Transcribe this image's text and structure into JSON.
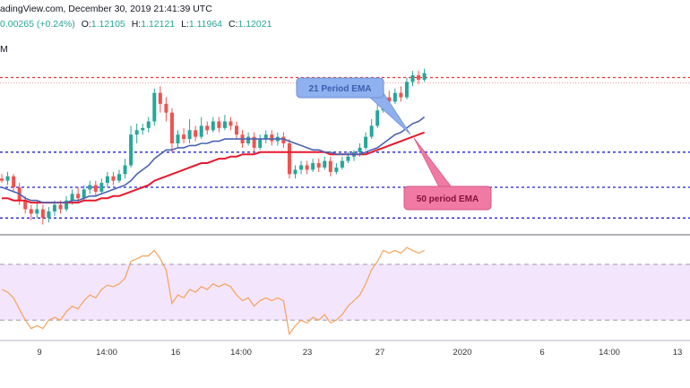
{
  "header": {
    "source_text": "adingView.com, December 30, 2019 21:41:39 UTC",
    "change_text": "0.00265 (+0.24%)",
    "ohlc": [
      {
        "label": "O:",
        "value": "1.12105"
      },
      {
        "label": "H:",
        "value": "1.12121"
      },
      {
        "label": "L:",
        "value": "1.11964"
      },
      {
        "label": "C:",
        "value": "1.12021"
      }
    ],
    "interval_label": "M"
  },
  "callouts": {
    "ema21_label": "21 Period EMA",
    "ema50_label": "50 period EMA"
  },
  "colors": {
    "bull": "#26a69a",
    "bear": "#ef5350",
    "ema21": "#4a64b4",
    "ema50": "#e8192c",
    "resistance": "#e53935",
    "support": "#1e22d8",
    "rsi_line": "#f5a25c",
    "rsi_band_fill": "#f3e5fb",
    "callout_blue_fill": "#8fb1ef",
    "callout_pink_fill": "#f07aa3"
  },
  "x_axis": {
    "tick_labels": [
      "9",
      "14:00",
      "16",
      "14:00",
      "23",
      "27",
      "2020",
      "6",
      "14:00",
      "13"
    ]
  },
  "chart_data": {
    "type": "candlestick",
    "x_unit": "candle index",
    "candles": [
      [
        1.1094,
        1.1093,
        1.1092,
        1.1096
      ],
      [
        1.1093,
        1.1095,
        1.1091,
        1.1097
      ],
      [
        1.1095,
        1.109,
        1.1088,
        1.1096
      ],
      [
        1.109,
        1.1084,
        1.1082,
        1.1092
      ],
      [
        1.1084,
        1.108,
        1.1078,
        1.1086
      ],
      [
        1.108,
        1.1078,
        1.1075,
        1.1082
      ],
      [
        1.1078,
        1.108,
        1.1076,
        1.1083
      ],
      [
        1.108,
        1.1076,
        1.1073,
        1.1082
      ],
      [
        1.1076,
        1.1079,
        1.1074,
        1.1081
      ],
      [
        1.1079,
        1.1082,
        1.1077,
        1.1084
      ],
      [
        1.1082,
        1.108,
        1.1078,
        1.1084
      ],
      [
        1.108,
        1.1084,
        1.1079,
        1.1086
      ],
      [
        1.1084,
        1.1087,
        1.1082,
        1.1089
      ],
      [
        1.1087,
        1.1085,
        1.1083,
        1.109
      ],
      [
        1.1085,
        1.1089,
        1.1084,
        1.1091
      ],
      [
        1.1089,
        1.1091,
        1.1087,
        1.1093
      ],
      [
        1.1091,
        1.1088,
        1.1086,
        1.1093
      ],
      [
        1.1088,
        1.1092,
        1.1087,
        1.1094
      ],
      [
        1.1092,
        1.1095,
        1.109,
        1.1097
      ],
      [
        1.1095,
        1.1093,
        1.1091,
        1.1097
      ],
      [
        1.1093,
        1.1096,
        1.1092,
        1.1098
      ],
      [
        1.1096,
        1.11,
        1.1094,
        1.1103
      ],
      [
        1.11,
        1.1114,
        1.1099,
        1.1118
      ],
      [
        1.1114,
        1.1116,
        1.111,
        1.1119
      ],
      [
        1.1116,
        1.1117,
        1.1114,
        1.1119
      ],
      [
        1.1117,
        1.112,
        1.1115,
        1.1122
      ],
      [
        1.112,
        1.1133,
        1.1118,
        1.1135
      ],
      [
        1.1133,
        1.1128,
        1.1124,
        1.1136
      ],
      [
        1.1128,
        1.1124,
        1.112,
        1.1131
      ],
      [
        1.1124,
        1.111,
        1.1106,
        1.1126
      ],
      [
        1.111,
        1.1114,
        1.1108,
        1.1116
      ],
      [
        1.1114,
        1.1112,
        1.111,
        1.1117
      ],
      [
        1.1112,
        1.1116,
        1.111,
        1.1121
      ],
      [
        1.1116,
        1.1113,
        1.1111,
        1.1118
      ],
      [
        1.1113,
        1.1118,
        1.1112,
        1.1122
      ],
      [
        1.1118,
        1.1116,
        1.1114,
        1.112
      ],
      [
        1.1116,
        1.112,
        1.1115,
        1.1122
      ],
      [
        1.112,
        1.1117,
        1.1115,
        1.1122
      ],
      [
        1.1117,
        1.112,
        1.1116,
        1.1123
      ],
      [
        1.112,
        1.1118,
        1.1116,
        1.1122
      ],
      [
        1.1118,
        1.1114,
        1.1112,
        1.112
      ],
      [
        1.1114,
        1.111,
        1.1108,
        1.1116
      ],
      [
        1.111,
        1.1113,
        1.1109,
        1.1115
      ],
      [
        1.1113,
        1.1108,
        1.1106,
        1.1115
      ],
      [
        1.1108,
        1.1112,
        1.1107,
        1.1114
      ],
      [
        1.1112,
        1.1114,
        1.111,
        1.1116
      ],
      [
        1.1114,
        1.1111,
        1.1109,
        1.1116
      ],
      [
        1.1111,
        1.1113,
        1.1109,
        1.1115
      ],
      [
        1.1113,
        1.111,
        1.1108,
        1.1115
      ],
      [
        1.111,
        1.1096,
        1.1094,
        1.1112
      ],
      [
        1.1096,
        1.1098,
        1.1094,
        1.11
      ],
      [
        1.1098,
        1.11,
        1.1096,
        1.1102
      ],
      [
        1.11,
        1.1098,
        1.1096,
        1.1102
      ],
      [
        1.1098,
        1.1101,
        1.1097,
        1.1103
      ],
      [
        1.1101,
        1.1099,
        1.1097,
        1.1103
      ],
      [
        1.1099,
        1.1102,
        1.1098,
        1.1104
      ],
      [
        1.1102,
        1.1097,
        1.1095,
        1.1104
      ],
      [
        1.1097,
        1.1099,
        1.1096,
        1.1101
      ],
      [
        1.1099,
        1.1102,
        1.1098,
        1.1104
      ],
      [
        1.1102,
        1.1104,
        1.1101,
        1.1106
      ],
      [
        1.1104,
        1.1106,
        1.1102,
        1.1107
      ],
      [
        1.1106,
        1.1108,
        1.1104,
        1.111
      ],
      [
        1.1108,
        1.1113,
        1.1107,
        1.1115
      ],
      [
        1.1113,
        1.1118,
        1.1112,
        1.1121
      ],
      [
        1.1118,
        1.1125,
        1.1117,
        1.1128
      ],
      [
        1.1125,
        1.1131,
        1.1124,
        1.1134
      ],
      [
        1.1131,
        1.1129,
        1.1126,
        1.1134
      ],
      [
        1.1129,
        1.1133,
        1.1128,
        1.1135
      ],
      [
        1.1133,
        1.1131,
        1.1129,
        1.1136
      ],
      [
        1.1131,
        1.1138,
        1.113,
        1.114
      ],
      [
        1.1138,
        1.1141,
        1.1136,
        1.1143
      ],
      [
        1.1141,
        1.1139,
        1.1137,
        1.1143
      ],
      [
        1.1139,
        1.1142,
        1.1138,
        1.1144
      ]
    ],
    "ema21": [
      1.109,
      1.1089,
      1.1088,
      1.1087,
      1.1085,
      1.1084,
      1.1084,
      1.1083,
      1.1083,
      1.1083,
      1.1083,
      1.1083,
      1.1084,
      1.1084,
      1.1085,
      1.1086,
      1.1086,
      1.1087,
      1.1088,
      1.1089,
      1.109,
      1.1091,
      1.1093,
      1.1096,
      1.1098,
      1.11,
      1.1103,
      1.1105,
      1.1107,
      1.1107,
      1.1108,
      1.1108,
      1.1109,
      1.1109,
      1.111,
      1.111,
      1.1111,
      1.1111,
      1.1112,
      1.1112,
      1.1112,
      1.1112,
      1.1112,
      1.1112,
      1.1112,
      1.1112,
      1.1112,
      1.1112,
      1.1112,
      1.1111,
      1.111,
      1.1109,
      1.1108,
      1.1107,
      1.1107,
      1.1106,
      1.1106,
      1.1105,
      1.1105,
      1.1105,
      1.1105,
      1.1105,
      1.1106,
      1.1107,
      1.1108,
      1.111,
      1.1112,
      1.1114,
      1.1115,
      1.1117,
      1.1119,
      1.112,
      1.1122
    ],
    "ema50": [
      1.1085,
      1.1085,
      1.1084,
      1.1084,
      1.1084,
      1.1083,
      1.1083,
      1.1083,
      1.1083,
      1.1083,
      1.1083,
      1.1083,
      1.1083,
      1.1083,
      1.1084,
      1.1084,
      1.1084,
      1.1085,
      1.1085,
      1.1086,
      1.1086,
      1.1087,
      1.1088,
      1.1089,
      1.109,
      1.1091,
      1.1093,
      1.1094,
      1.1095,
      1.1096,
      1.1097,
      1.1098,
      1.1099,
      1.11,
      1.1101,
      1.1101,
      1.1102,
      1.1103,
      1.1103,
      1.1104,
      1.1104,
      1.1105,
      1.1105,
      1.1105,
      1.1106,
      1.1106,
      1.1106,
      1.1106,
      1.1106,
      1.1106,
      1.1106,
      1.1106,
      1.1106,
      1.1106,
      1.1106,
      1.1106,
      1.1105,
      1.1105,
      1.1105,
      1.1105,
      1.1105,
      1.1105,
      1.1105,
      1.1106,
      1.1107,
      1.1108,
      1.1109,
      1.111,
      1.1111,
      1.1112,
      1.1113,
      1.1114,
      1.1115
    ],
    "resistance_level": 1.114,
    "support_levels": [
      1.1106,
      1.109,
      1.1076
    ],
    "ylim": [
      1.107,
      1.115
    ],
    "rsi": [
      52,
      50,
      46,
      38,
      30,
      24,
      26,
      24,
      30,
      32,
      30,
      36,
      40,
      38,
      44,
      48,
      46,
      52,
      55,
      54,
      56,
      60,
      72,
      74,
      76,
      76,
      80,
      74,
      66,
      42,
      48,
      46,
      52,
      50,
      54,
      52,
      56,
      54,
      56,
      54,
      48,
      44,
      46,
      40,
      44,
      46,
      44,
      46,
      44,
      20,
      26,
      30,
      28,
      32,
      30,
      34,
      28,
      30,
      34,
      40,
      44,
      48,
      56,
      66,
      72,
      80,
      78,
      80,
      78,
      82,
      80,
      78,
      80
    ],
    "rsi_ylim": [
      18,
      86
    ],
    "rsi_band": [
      30,
      70
    ]
  }
}
